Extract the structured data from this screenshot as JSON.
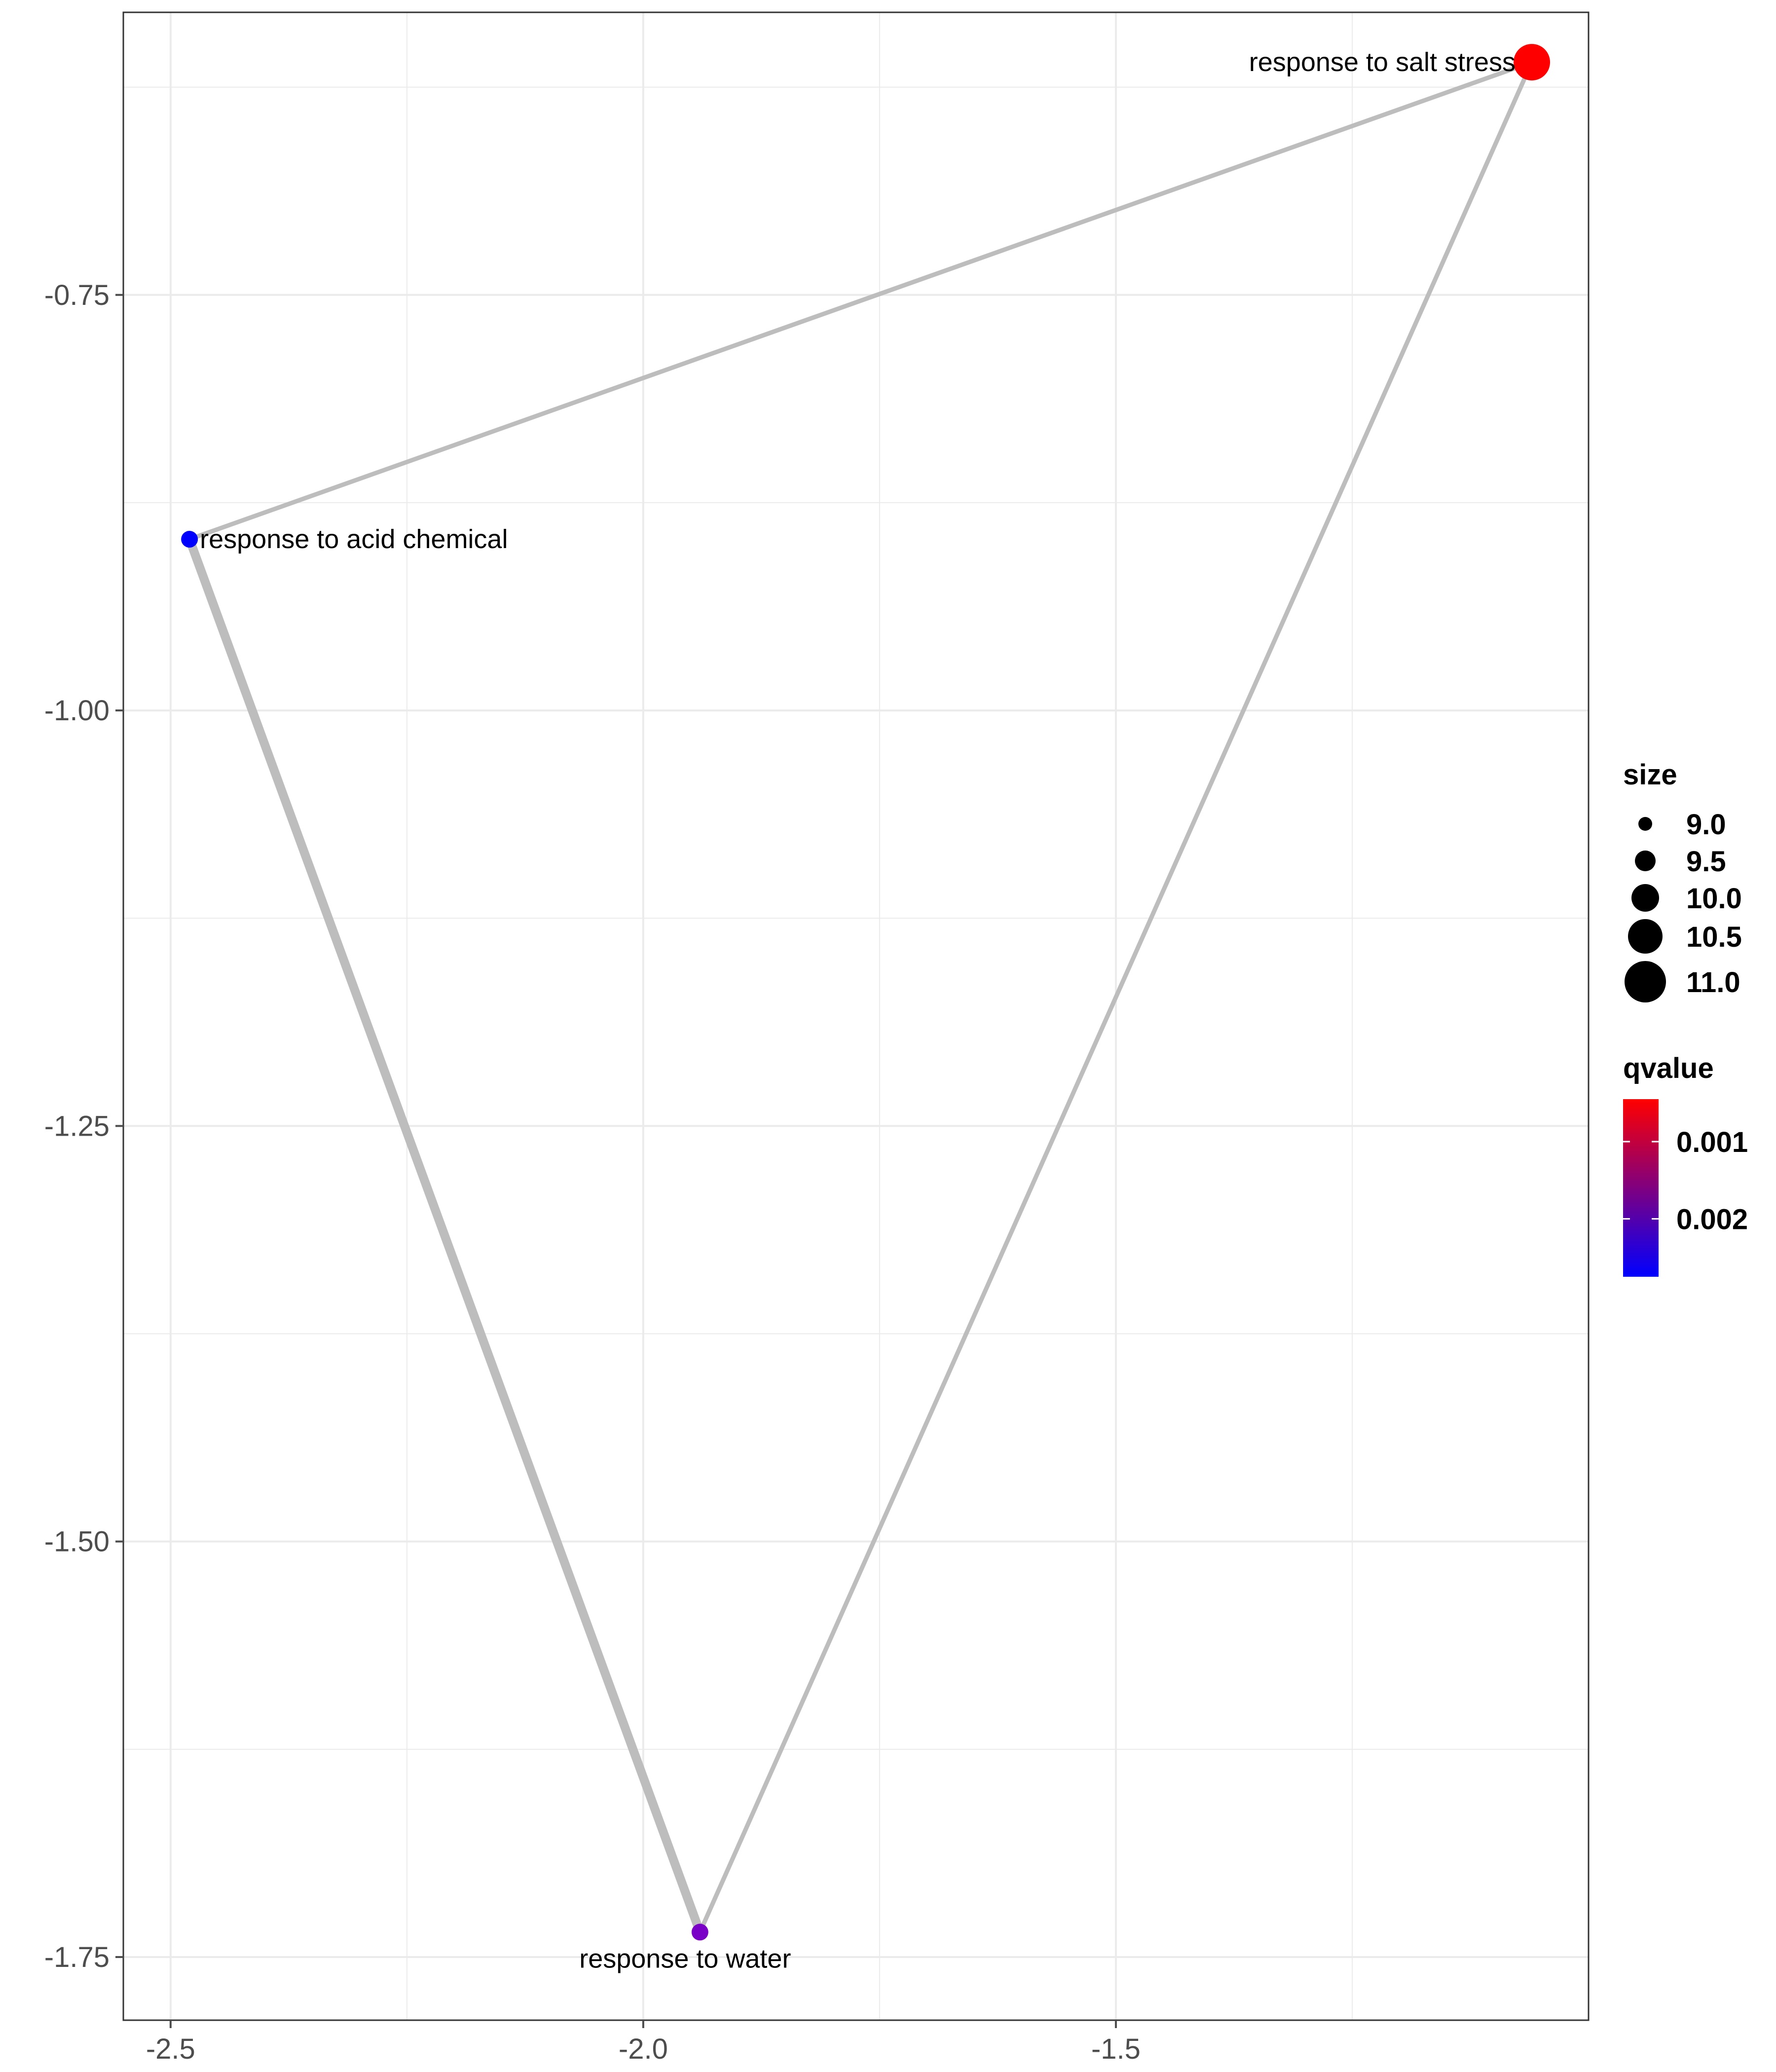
{
  "chart_data": {
    "type": "scatter",
    "title": "",
    "xlabel": "",
    "ylabel": "",
    "xlim": [
      -2.55,
      -1.0
    ],
    "ylim": [
      -1.788,
      -0.58
    ],
    "x_ticks": [
      -2.5,
      -2.0,
      -1.5
    ],
    "x_tick_labels": [
      "-2.5",
      "-2.0",
      "-1.5"
    ],
    "y_ticks": [
      -0.75,
      -1.0,
      -1.25,
      -1.5,
      -1.75
    ],
    "y_tick_labels": [
      "-0.75",
      "-1.00",
      "-1.25",
      "-1.50",
      "-1.75"
    ],
    "grid": true,
    "nodes": [
      {
        "name": "response to salt stress",
        "x": -1.06,
        "y": -0.61,
        "size": 11.0,
        "qvalue": 0.0006,
        "color": "#ff0000",
        "label_anchor": "end"
      },
      {
        "name": "response to acid chemical",
        "x": -2.48,
        "y": -0.897,
        "size": 9.0,
        "qvalue": 0.0026,
        "color": "#0000ff",
        "label_anchor": "start"
      },
      {
        "name": "response to water",
        "x": -1.94,
        "y": -1.735,
        "size": 9.0,
        "qvalue": 0.0021,
        "color": "#7a00c8",
        "label_anchor": "middle-below"
      }
    ],
    "edges": [
      {
        "from": 0,
        "to": 1,
        "weight": 1
      },
      {
        "from": 0,
        "to": 2,
        "weight": 1
      },
      {
        "from": 1,
        "to": 2,
        "weight": 2
      }
    ],
    "legend": {
      "placement": "right",
      "size_title": "size",
      "size_entries": [
        {
          "label": "9.0",
          "value": 9.0
        },
        {
          "label": "9.5",
          "value": 9.5
        },
        {
          "label": "10.0",
          "value": 10.0
        },
        {
          "label": "10.5",
          "value": 10.5
        },
        {
          "label": "11.0",
          "value": 11.0
        }
      ],
      "color_title": "qvalue",
      "color_high": "#ff0000",
      "color_low": "#0000ff",
      "color_range": [
        0.00045,
        0.00275
      ],
      "color_ticks": [
        {
          "label": "0.001",
          "value": 0.001
        },
        {
          "label": "0.002",
          "value": 0.002
        }
      ]
    },
    "colors": {
      "edge": "#bdbdbd",
      "grid": "#ebebeb",
      "panel_border": "#333333",
      "tick": "#4d4d4d"
    }
  }
}
